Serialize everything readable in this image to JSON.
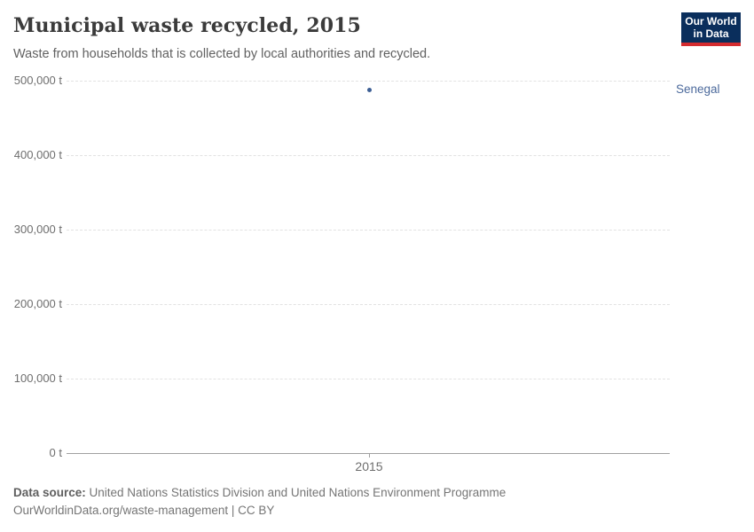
{
  "header": {
    "title": "Municipal waste recycled, 2015",
    "subtitle": "Waste from households that is collected by local authorities and recycled."
  },
  "logo": {
    "line1": "Our World",
    "line2": "in Data",
    "bg_color": "#0a2e5c",
    "accent_color": "#d42b2f"
  },
  "chart_data": {
    "type": "scatter",
    "title": "Municipal waste recycled, 2015",
    "xlabel": "",
    "ylabel": "",
    "x": [
      2015
    ],
    "series": [
      {
        "name": "Senegal",
        "color": "#3c5e94",
        "label_color": "#4c6a9c",
        "values": [
          488000
        ]
      }
    ],
    "unit": "t",
    "ylim": [
      0,
      500000
    ],
    "yticks": [
      0,
      100000,
      200000,
      300000,
      400000,
      500000
    ],
    "ytick_labels": [
      "0 t",
      "100,000 t",
      "200,000 t",
      "300,000 t",
      "400,000 t",
      "500,000 t"
    ],
    "xtick_labels": [
      "2015"
    ],
    "grid": "horizontal-dashed",
    "legend_position": "right-of-plot"
  },
  "footer": {
    "source_label": "Data source:",
    "source_text": " United Nations Statistics Division and United Nations Environment Programme",
    "link": "OurWorldinData.org/waste-management",
    "separator": " | ",
    "license": "CC BY"
  }
}
